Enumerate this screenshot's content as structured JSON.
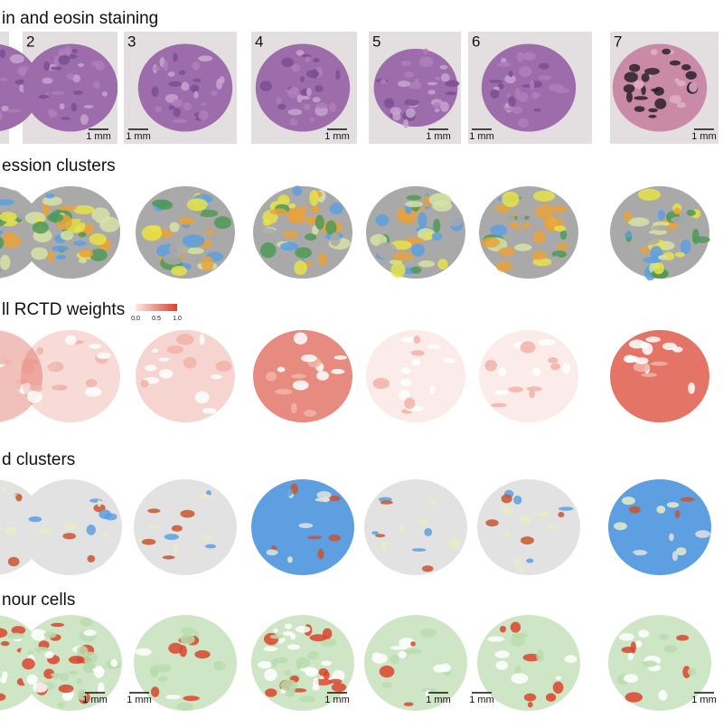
{
  "rows": [
    {
      "title": "in and eosin staining",
      "panel_labels": [
        "2",
        "3",
        "4",
        "5",
        "6",
        "7"
      ]
    },
    {
      "title": "ession clusters"
    },
    {
      "title": "ll RCTD weights",
      "colorbar_ticks": [
        "0.0",
        "0.5",
        "1.0"
      ]
    },
    {
      "title": "d clusters"
    },
    {
      "title": "nour cells"
    }
  ],
  "scale_bar_label": "1 mm"
}
